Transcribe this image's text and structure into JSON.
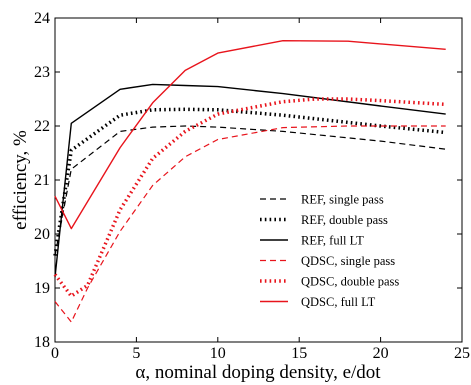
{
  "chart_data": {
    "type": "line",
    "xlabel": "α, nominal doping density, e/dot",
    "ylabel": "efficiency, %",
    "xlim": [
      0,
      25
    ],
    "ylim": [
      18,
      24
    ],
    "xticks": [
      "0",
      "5",
      "10",
      "15",
      "20",
      "25"
    ],
    "yticks": [
      "18",
      "19",
      "20",
      "21",
      "22",
      "23",
      "24"
    ],
    "grid": false,
    "legend_position": "bottom-right",
    "series": [
      {
        "name": "REF, single pass",
        "color": "#000000",
        "style": "dashed",
        "x": [
          0,
          1,
          4,
          6,
          8,
          10,
          14,
          20,
          24
        ],
        "y": [
          19.6,
          21.2,
          21.9,
          21.98,
          22.0,
          21.98,
          21.9,
          21.72,
          21.57
        ]
      },
      {
        "name": "REF, double pass",
        "color": "#000000",
        "style": "dotted",
        "x": [
          0,
          1,
          4,
          6,
          8,
          10,
          14,
          20,
          24
        ],
        "y": [
          19.6,
          21.55,
          22.2,
          22.3,
          22.31,
          22.3,
          22.2,
          22.0,
          21.88
        ]
      },
      {
        "name": "REF, full LT",
        "color": "#000000",
        "style": "solid",
        "x": [
          0,
          1,
          4,
          6,
          8,
          10,
          14,
          20,
          24
        ],
        "y": [
          19.2,
          22.05,
          22.68,
          22.77,
          22.75,
          22.73,
          22.6,
          22.37,
          22.22
        ]
      },
      {
        "name": "QDSC, single pass",
        "color": "#e8141c",
        "style": "dashed",
        "x": [
          0,
          1,
          2,
          4,
          6,
          8,
          10,
          14,
          18,
          24
        ],
        "y": [
          18.75,
          18.37,
          19.0,
          20.05,
          20.9,
          21.43,
          21.75,
          21.97,
          22.0,
          22.0
        ]
      },
      {
        "name": "QDSC, double pass",
        "color": "#e8141c",
        "style": "dotted",
        "x": [
          0,
          1,
          2,
          4,
          6,
          8,
          10,
          14,
          16,
          18,
          20,
          24
        ],
        "y": [
          19.25,
          18.85,
          19.05,
          20.45,
          21.4,
          21.9,
          22.22,
          22.45,
          22.5,
          22.5,
          22.47,
          22.4
        ]
      },
      {
        "name": "QDSC, full LT",
        "color": "#e8141c",
        "style": "solid",
        "x": [
          0,
          1,
          4,
          6,
          8,
          10,
          14,
          18,
          24
        ],
        "y": [
          20.7,
          20.1,
          21.6,
          22.43,
          23.03,
          23.35,
          23.58,
          23.57,
          23.42
        ]
      }
    ]
  }
}
